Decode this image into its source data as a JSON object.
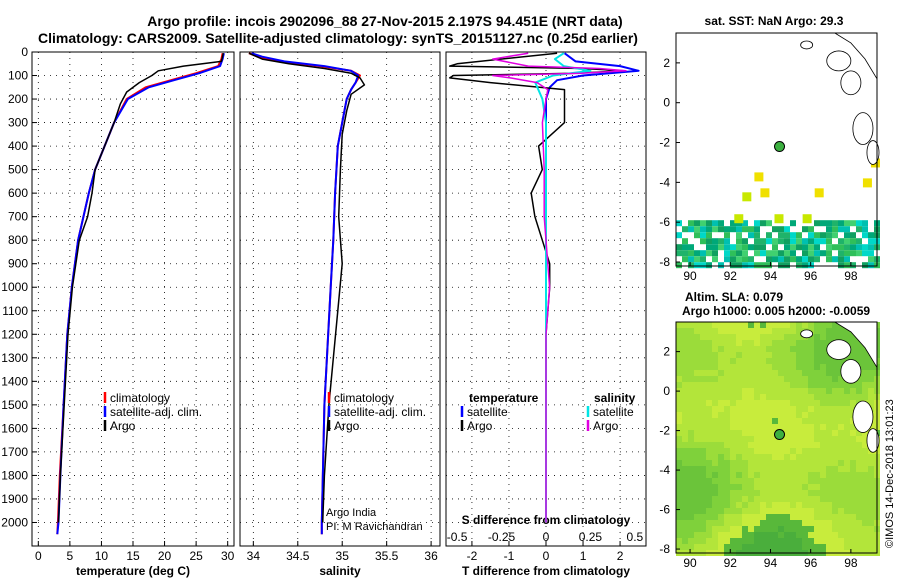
{
  "figure": {
    "title_line1": "Argo profile: incois 2902096_88 27-Nov-2015 2.197S 94.451E (NRT data)",
    "title_line2": "Climatology: CARS2009. Satellite-adjusted climatology: synTS_20151127.nc (0.25d earlier)",
    "credit": "©IMOS 14-Dec-2018 13:01:23",
    "argo_credit_1": "Argo India",
    "argo_credit_2": "PI: M Ravichandran"
  },
  "colors": {
    "climatology": "#ff0000",
    "satellite": "#0000ff",
    "argo": "#000000",
    "sat_diff": "#00e5e5",
    "argo_diff": "#e000e0"
  },
  "chart_data": [
    {
      "id": "temperature",
      "type": "line",
      "xlabel": "temperature (deg C)",
      "xlim": [
        -1,
        31
      ],
      "ylim": [
        2100,
        0
      ],
      "xticks": [
        0,
        5,
        10,
        15,
        20,
        25,
        30
      ],
      "yticks": [
        0,
        100,
        200,
        300,
        400,
        500,
        600,
        700,
        800,
        900,
        1000,
        1100,
        1200,
        1300,
        1400,
        1500,
        1600,
        1700,
        1800,
        1900,
        2000
      ],
      "legend": [
        "climatology",
        "satellite-adj. clim.",
        "Argo"
      ],
      "series": [
        {
          "name": "climatology",
          "depth": [
            5,
            30,
            60,
            90,
            120,
            150,
            200,
            300,
            400,
            500,
            600,
            800,
            1000,
            1200,
            1500,
            1800,
            2000,
            2050
          ],
          "values": [
            29.2,
            29,
            28.5,
            25,
            21,
            17,
            14,
            12,
            10.5,
            9,
            8,
            6.3,
            5.3,
            4.6,
            4,
            3.4,
            3.1,
            3
          ]
        },
        {
          "name": "satellite-adj. clim.",
          "depth": [
            5,
            30,
            60,
            90,
            120,
            150,
            200,
            300,
            400,
            500,
            600,
            800,
            1000,
            1200,
            1500,
            1800,
            2000,
            2050
          ],
          "values": [
            29.4,
            29.2,
            28.8,
            25.5,
            21.5,
            17.5,
            14.2,
            12,
            10.5,
            9,
            8,
            6.3,
            5.3,
            4.6,
            4,
            3.5,
            3.2,
            3
          ]
        },
        {
          "name": "Argo",
          "depth": [
            5,
            40,
            60,
            80,
            100,
            130,
            170,
            220,
            300,
            400,
            500,
            600,
            700,
            800,
            1000,
            1200,
            1500,
            1800,
            2000
          ],
          "values": [
            29.3,
            29,
            23,
            19,
            18,
            16,
            14,
            13,
            12,
            10.5,
            9,
            8.5,
            7.8,
            6.5,
            5.4,
            4.7,
            4.1,
            3.5,
            3.2
          ]
        }
      ]
    },
    {
      "id": "salinity",
      "type": "line",
      "xlabel": "salinity",
      "xlim": [
        33.85,
        36.1
      ],
      "ylim": [
        2100,
        0
      ],
      "xticks": [
        34,
        34.5,
        35,
        35.5,
        36
      ],
      "legend": [
        "climatology",
        "satellite-adj. clim.",
        "Argo"
      ],
      "series": [
        {
          "name": "climatology",
          "depth": [
            5,
            20,
            40,
            60,
            80,
            100,
            130,
            160,
            200,
            300,
            400,
            600,
            800,
            1000,
            1500,
            2000,
            2050
          ],
          "values": [
            33.95,
            34.05,
            34.3,
            34.75,
            35.1,
            35.2,
            35.15,
            35.1,
            35.05,
            35,
            34.95,
            34.92,
            34.9,
            34.87,
            34.8,
            34.77,
            34.77
          ]
        },
        {
          "name": "satellite-adj. clim.",
          "depth": [
            5,
            20,
            40,
            60,
            80,
            100,
            130,
            160,
            200,
            300,
            400,
            600,
            800,
            1000,
            1500,
            2000,
            2050
          ],
          "values": [
            33.98,
            34.1,
            34.35,
            34.8,
            35.1,
            35.18,
            35.15,
            35.1,
            35.05,
            35,
            34.95,
            34.92,
            34.9,
            34.87,
            34.8,
            34.77,
            34.77
          ]
        },
        {
          "name": "Argo",
          "depth": [
            5,
            30,
            50,
            70,
            90,
            110,
            140,
            180,
            250,
            350,
            500,
            700,
            900,
            1100,
            1500,
            1800,
            2000
          ],
          "values": [
            33.95,
            34.1,
            34.4,
            34.8,
            35.1,
            35.2,
            35.25,
            35.1,
            35.05,
            35,
            34.98,
            34.96,
            35,
            34.95,
            34.85,
            34.8,
            34.78
          ]
        }
      ]
    },
    {
      "id": "difference",
      "type": "line",
      "xlabel": "T difference from climatology",
      "xlabel_top": "S difference from climatology",
      "xlim": [
        -2.7,
        2.7
      ],
      "ylim": [
        2100,
        0
      ],
      "xticks": [
        -2,
        -1,
        0,
        1,
        2
      ],
      "xticks_top": [
        "-0.5",
        "-0.25",
        "0",
        "0.25",
        "0.5"
      ],
      "legend_left_title": "temperature",
      "legend_right_title": "salinity",
      "legend": [
        "satellite",
        "Argo",
        "satellite",
        "Argo"
      ],
      "series": [
        {
          "name": "T satellite",
          "depth": [
            5,
            40,
            60,
            80,
            100,
            120,
            150,
            200,
            300,
            500,
            700,
            1000,
            1500,
            2000
          ],
          "values": [
            0.5,
            0.8,
            2,
            2.5,
            1,
            0.3,
            0.1,
            0,
            0,
            0,
            0,
            0,
            0,
            0
          ]
        },
        {
          "name": "T Argo",
          "depth": [
            5,
            50,
            60,
            70,
            80,
            90,
            100,
            110,
            130,
            160,
            200,
            300,
            400,
            500,
            600,
            700,
            800,
            900,
            1000,
            1200,
            1500,
            1800,
            2000
          ],
          "values": [
            0.3,
            -2.4,
            -2.6,
            1,
            2.1,
            0.8,
            -2.5,
            -2.6,
            -1.5,
            0.5,
            0.5,
            0.5,
            -0.2,
            -0.1,
            -0.4,
            -0.3,
            -0.1,
            0.1,
            0.1,
            0,
            0,
            0,
            0
          ]
        },
        {
          "name": "S satellite",
          "depth": [
            5,
            30,
            60,
            80,
            100,
            130,
            200,
            300,
            500,
            700,
            1000,
            1500,
            2000
          ],
          "values": [
            0.1,
            0.05,
            0.1,
            0.25,
            0.04,
            -0.06,
            -0.02,
            0,
            0,
            0,
            0,
            0,
            0
          ]
        },
        {
          "name": "S Argo",
          "depth": [
            5,
            30,
            60,
            70,
            80,
            90,
            100,
            110,
            130,
            160,
            200,
            300,
            500,
            700,
            1000,
            1200,
            1500,
            1800,
            2000
          ],
          "values": [
            -0.1,
            -0.3,
            -0.1,
            0.3,
            0.45,
            0.2,
            -0.3,
            -0.2,
            -0.05,
            0.01,
            0,
            -0.02,
            -0.01,
            -0.01,
            0.02,
            0,
            0,
            0,
            0
          ]
        }
      ]
    },
    {
      "id": "sst_map",
      "type": "heatmap",
      "title": "sat. SST: NaN Argo: 29.3",
      "xlim": [
        89.3,
        99.3
      ],
      "ylim": [
        -8.2,
        3.5
      ],
      "xticks": [
        90,
        92,
        94,
        96,
        98
      ],
      "yticks": [
        -8,
        -6,
        -4,
        -2,
        0,
        2
      ],
      "argo_position": {
        "lon": 94.45,
        "lat": -2.2
      }
    },
    {
      "id": "sla_map",
      "type": "heatmap",
      "title": "Altim. SLA: 0.079",
      "subtitle": "Argo h1000: 0.005 h2000: -0.0059",
      "xlim": [
        89.3,
        99.3
      ],
      "ylim": [
        -8.2,
        3.5
      ],
      "xticks": [
        90,
        92,
        94,
        96,
        98
      ],
      "yticks": [
        -8,
        -6,
        -4,
        -2,
        0,
        2
      ],
      "argo_position": {
        "lon": 94.45,
        "lat": -2.2
      }
    }
  ]
}
